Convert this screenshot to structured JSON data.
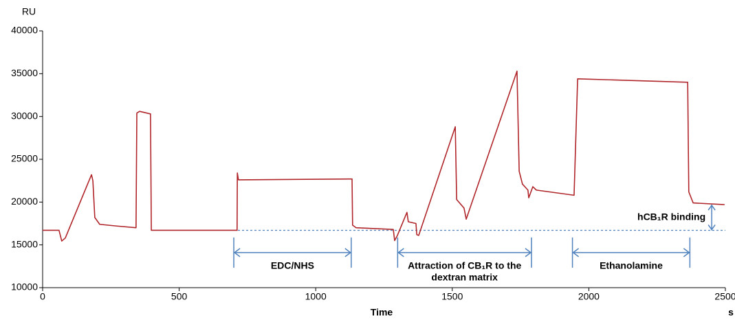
{
  "chart_data": {
    "type": "line",
    "y_label": "RU",
    "x_label": "Time",
    "x_unit": "s",
    "xlim": [
      0,
      2500
    ],
    "ylim": [
      10000,
      40000
    ],
    "xticks": [
      0,
      500,
      1000,
      1500,
      2000,
      2500
    ],
    "yticks": [
      10000,
      15000,
      20000,
      25000,
      30000,
      35000,
      40000
    ],
    "color": "#b0252a",
    "x": [
      0,
      60,
      70,
      83,
      179,
      184,
      191,
      209,
      272,
      342,
      345,
      355,
      395,
      398,
      712,
      713,
      717,
      1133,
      1135,
      1148,
      1284,
      1289,
      1299,
      1334,
      1339,
      1367,
      1370,
      1377,
      1511,
      1516,
      1543,
      1551,
      1737,
      1745,
      1757,
      1777,
      1780,
      1795,
      1808,
      1946,
      1959,
      2362,
      2366,
      2382,
      2497
    ],
    "values": [
      16700,
      16700,
      15450,
      15800,
      23200,
      22500,
      18200,
      17400,
      17200,
      17000,
      30400,
      30600,
      30300,
      16700,
      16700,
      23400,
      22600,
      22700,
      17300,
      17000,
      16800,
      15500,
      16100,
      18800,
      17700,
      17500,
      16200,
      16100,
      28800,
      20300,
      19300,
      18000,
      35300,
      23600,
      22100,
      21400,
      20500,
      21800,
      21400,
      20800,
      34400,
      34000,
      21200,
      19900,
      19700
    ],
    "baseline": {
      "value": 16700,
      "x": [
        715,
        2500
      ],
      "color": "#4f81bd"
    },
    "ranges": [
      {
        "label_lines": [
          "EDC/NHS"
        ],
        "x": [
          700,
          1130
        ],
        "y": 14100
      },
      {
        "label_lines": [
          "Attraction of CB₁R to the",
          "dextran matrix"
        ],
        "x": [
          1300,
          1790
        ],
        "y": 14100
      },
      {
        "label_lines": [
          "Ethanolamine"
        ],
        "x": [
          1940,
          2370
        ],
        "y": 14100
      }
    ],
    "binding_arrow": {
      "label": "hCB₁R binding",
      "x": 2450,
      "y": [
        16700,
        19700
      ]
    }
  }
}
